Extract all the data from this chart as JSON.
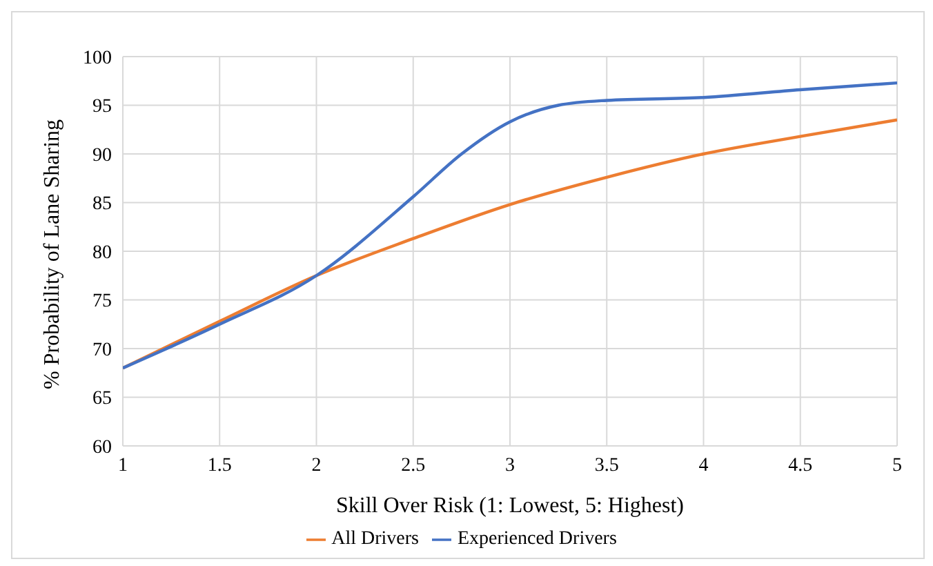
{
  "chart_data": {
    "type": "line",
    "xlabel": "Skill Over Risk  (1: Lowest, 5: Highest)",
    "ylabel": "% Probability of Lane Sharing",
    "xlim": [
      1,
      5
    ],
    "xticks": [
      1,
      1.5,
      2,
      2.5,
      3,
      3.5,
      4,
      4.5,
      5
    ],
    "ylim": [
      60,
      100
    ],
    "yticks": [
      60,
      65,
      70,
      75,
      80,
      85,
      90,
      95,
      100
    ],
    "grid": true,
    "legend": "bottom",
    "marker": "none",
    "line_style": "solid",
    "series": [
      {
        "name": "All Drivers",
        "color": "#ed7d31",
        "x": [
          1,
          1.5,
          2,
          2.5,
          3,
          3.5,
          4,
          4.5,
          5
        ],
        "values": [
          68,
          72.8,
          77.5,
          81.3,
          84.8,
          87.6,
          90,
          91.8,
          93.5
        ]
      },
      {
        "name": "Experienced Drivers",
        "color": "#4472c4",
        "x": [
          1,
          1.5,
          2,
          2.5,
          2.75,
          3,
          3.25,
          3.5,
          4,
          4.5,
          5
        ],
        "values": [
          68,
          72.5,
          77.5,
          85.6,
          90,
          93.3,
          95,
          95.5,
          95.8,
          96.6,
          97.3
        ]
      }
    ]
  }
}
